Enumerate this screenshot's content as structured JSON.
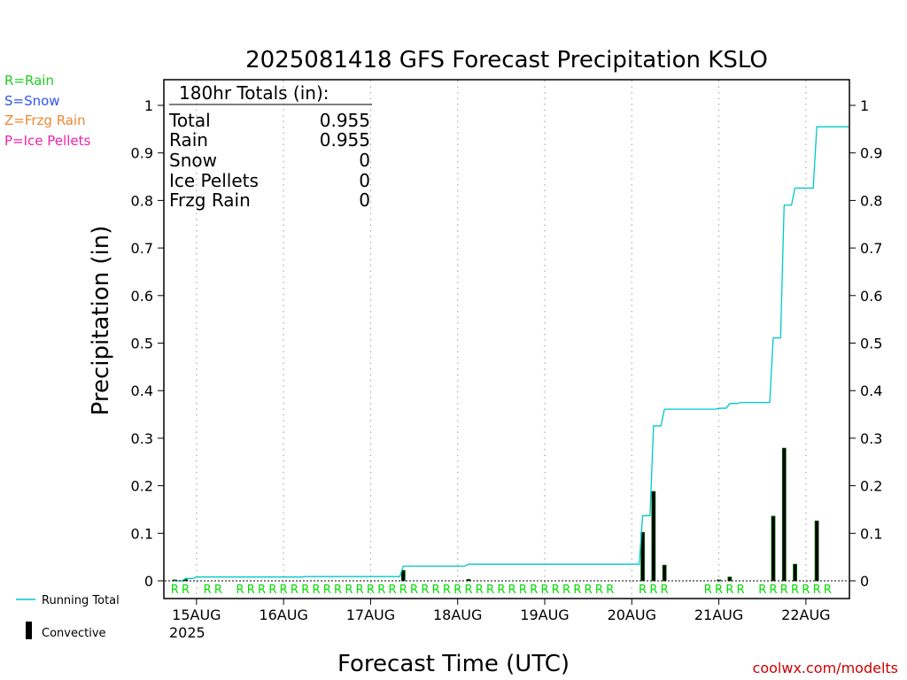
{
  "chart_data": {
    "type": "line",
    "title": "2025081418 GFS Forecast Precipitation KSLO",
    "xlabel": "Forecast Time (UTC)",
    "ylabel": "Precipitation (in)",
    "ylim": [
      0,
      1.05
    ],
    "xlim": [
      -3,
      186
    ],
    "y_ticks": [
      "0",
      "0.1",
      "0.2",
      "0.3",
      "0.4",
      "0.5",
      "0.6",
      "0.7",
      "0.8",
      "0.9",
      "1"
    ],
    "x_ticks": [
      {
        "label": "15AUG",
        "x": 6
      },
      {
        "label": "16AUG",
        "x": 30
      },
      {
        "label": "17AUG",
        "x": 54
      },
      {
        "label": "18AUG",
        "x": 78
      },
      {
        "label": "19AUG",
        "x": 102
      },
      {
        "label": "20AUG",
        "x": 126
      },
      {
        "label": "21AUG",
        "x": 150
      },
      {
        "label": "22AUG",
        "x": 174
      }
    ],
    "x_sublabel": "2025",
    "grid": "vertical dotted lines at day boundaries",
    "series": [
      {
        "name": "Running Total",
        "color": "#00c8c8",
        "x": [
          0,
          3,
          6,
          12,
          18,
          24,
          30,
          36,
          42,
          48,
          54,
          60,
          63,
          66,
          72,
          78,
          81,
          84,
          90,
          96,
          102,
          108,
          114,
          120,
          126,
          129,
          132,
          135,
          138,
          141,
          144,
          147,
          150,
          153,
          156,
          159,
          162,
          165,
          168,
          171,
          174,
          177,
          180
        ],
        "values": [
          0.0,
          0.005,
          0.008,
          0.008,
          0.008,
          0.008,
          0.008,
          0.009,
          0.009,
          0.009,
          0.009,
          0.009,
          0.031,
          0.031,
          0.031,
          0.031,
          0.035,
          0.035,
          0.035,
          0.035,
          0.035,
          0.035,
          0.035,
          0.035,
          0.035,
          0.137,
          0.326,
          0.361,
          0.361,
          0.361,
          0.361,
          0.361,
          0.363,
          0.373,
          0.375,
          0.375,
          0.375,
          0.511,
          0.79,
          0.826,
          0.826,
          0.955,
          0.955
        ]
      },
      {
        "name": "Convective",
        "color": "#000000",
        "type": "bar",
        "x": [
          0,
          3,
          63,
          81,
          129,
          132,
          135,
          150,
          153,
          165,
          168,
          171,
          177
        ],
        "values": [
          0.002,
          0.003,
          0.022,
          0.003,
          0.102,
          0.188,
          0.033,
          0.002,
          0.008,
          0.136,
          0.279,
          0.035,
          0.126
        ]
      }
    ],
    "precip_type_markers": {
      "label": "R",
      "color": "#00dd00",
      "x": [
        0,
        3,
        9,
        12,
        18,
        21,
        24,
        27,
        30,
        33,
        36,
        39,
        42,
        45,
        48,
        51,
        54,
        57,
        60,
        63,
        66,
        69,
        72,
        75,
        78,
        81,
        84,
        87,
        90,
        93,
        96,
        99,
        102,
        105,
        108,
        111,
        114,
        117,
        120,
        129,
        132,
        135,
        147,
        150,
        153,
        156,
        162,
        165,
        168,
        171,
        174,
        177,
        180
      ]
    }
  },
  "ptype_key": [
    {
      "text": "R=Rain",
      "color": "#22cc22"
    },
    {
      "text": "S=Snow",
      "color": "#3355ee"
    },
    {
      "text": "Z=Frzg Rain",
      "color": "#ee8833"
    },
    {
      "text": "P=Ice Pellets",
      "color": "#ee22aa"
    }
  ],
  "totals": {
    "header": "180hr Totals (in):",
    "rows": [
      {
        "label": "Total",
        "value": "0.955"
      },
      {
        "label": "Rain",
        "value": "0.955"
      },
      {
        "label": "Snow",
        "value": "0"
      },
      {
        "label": "Ice Pellets",
        "value": "0"
      },
      {
        "label": "Frzg Rain",
        "value": "0"
      }
    ]
  },
  "legend": {
    "running_total": "Running Total",
    "convective": "Convective"
  },
  "credit": "coolwx.com/modelts",
  "colors": {
    "running_total": "#00c8c8",
    "convective": "#000000",
    "convective_edge": "#006600",
    "rain_marker": "#00dd00",
    "credit": "#cc0000"
  }
}
